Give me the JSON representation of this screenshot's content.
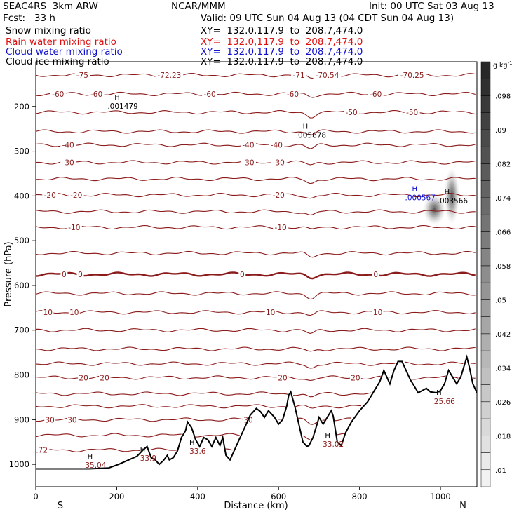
{
  "header": {
    "line1_left": "SEAC4RS  3km ARW",
    "line1_center": "NCAR/MMM",
    "line1_right": "Init: 00 UTC Sat 03 Aug 13",
    "line2_left": "Fcst:   33 h",
    "line2_right": "Valid: 09 UTC Sun 04 Aug 13 (04 CDT Sun 04 Aug 13)",
    "fields": [
      {
        "label": "Snow mixing ratio",
        "xy": "XY=  132.0,117.9  to  208.7,474.0",
        "color": "#000000"
      },
      {
        "label": "Rain water mixing ratio",
        "xy": "XY=  132.0,117.9  to  208.7,474.0",
        "color": "#e01010"
      },
      {
        "label": "Cloud water mixing ratio",
        "xy": "XY=  132.0,117.9  to  208.7,474.0",
        "color": "#1010d0"
      },
      {
        "label": "Cloud ice mixing ratio",
        "xy": "XY=  132.0,117.9  to  208.7,474.0",
        "color": "#000000"
      }
    ]
  },
  "colors": {
    "contour": "#8b1a1a",
    "terrain": "#000000",
    "plot_bg": "#ffffff"
  },
  "chart_data": {
    "type": "cross-section",
    "xlabel": "Distance (km)",
    "ylabel": "Pressure (hPa)",
    "xlim": [
      0,
      1090
    ],
    "ylim": [
      1050,
      100
    ],
    "x_ticks": [
      "0",
      "200",
      "400",
      "600",
      "800",
      "1000"
    ],
    "y_ticks": [
      "200",
      "300",
      "400",
      "500",
      "600",
      "700",
      "800",
      "900",
      "1000"
    ],
    "x_end_labels": {
      "left": "S",
      "right": "N"
    },
    "colorbar": {
      "unit": "g kg",
      "unit_exp": "-1",
      "labels": [
        ".098",
        ".09",
        ".082",
        ".074",
        ".066",
        ".058",
        ".05",
        ".042",
        ".034",
        ".026",
        ".018",
        ".01"
      ],
      "range": [
        0.006,
        0.106
      ],
      "levels": [
        0.006,
        0.01,
        0.014,
        0.018,
        0.022,
        0.026,
        0.03,
        0.034,
        0.038,
        0.042,
        0.046,
        0.05,
        0.054,
        0.058,
        0.062,
        0.066,
        0.07,
        0.074,
        0.078,
        0.082,
        0.086,
        0.09,
        0.094,
        0.098,
        0.102,
        0.106
      ]
    },
    "isotherms": [
      {
        "p": 130,
        "labels": [
          {
            "x": 115,
            "t": "-75"
          },
          {
            "x": 330,
            "t": "-72.23"
          },
          {
            "x": 650,
            "t": "-71"
          },
          {
            "x": 720,
            "t": "-70.54"
          },
          {
            "x": 930,
            "t": "-70.25"
          }
        ]
      },
      {
        "p": 172,
        "labels": [
          {
            "x": 55,
            "t": "-60"
          },
          {
            "x": 150,
            "t": "-60"
          },
          {
            "x": 430,
            "t": "-60"
          },
          {
            "x": 635,
            "t": "-60"
          },
          {
            "x": 840,
            "t": "-60"
          }
        ]
      },
      {
        "p": 213,
        "labels": [
          {
            "x": 780,
            "t": "-50"
          },
          {
            "x": 930,
            "t": "-50"
          }
        ]
      },
      {
        "p": 256
      },
      {
        "p": 286,
        "labels": [
          {
            "x": 80,
            "t": "-40"
          },
          {
            "x": 525,
            "t": "-40"
          },
          {
            "x": 595,
            "t": "-40"
          }
        ]
      },
      {
        "p": 325,
        "labels": [
          {
            "x": 80,
            "t": "-30"
          },
          {
            "x": 525,
            "t": "-30"
          },
          {
            "x": 600,
            "t": "-30"
          }
        ]
      },
      {
        "p": 362
      },
      {
        "p": 398,
        "labels": [
          {
            "x": 35,
            "t": "-20"
          },
          {
            "x": 100,
            "t": "-20"
          },
          {
            "x": 600,
            "t": "-20"
          }
        ]
      },
      {
        "p": 435
      },
      {
        "p": 470,
        "labels": [
          {
            "x": 95,
            "t": "-10"
          },
          {
            "x": 605,
            "t": "-10"
          }
        ]
      },
      {
        "p": 528
      },
      {
        "p": 575,
        "bold": true,
        "labels": [
          {
            "x": 70,
            "t": "0"
          },
          {
            "x": 110,
            "t": "0"
          },
          {
            "x": 510,
            "t": "0"
          },
          {
            "x": 840,
            "t": "0"
          }
        ]
      },
      {
        "p": 618
      },
      {
        "p": 660,
        "labels": [
          {
            "x": 30,
            "t": "10"
          },
          {
            "x": 95,
            "t": "10"
          },
          {
            "x": 580,
            "t": "10"
          },
          {
            "x": 845,
            "t": "10"
          }
        ]
      },
      {
        "p": 700
      },
      {
        "p": 742
      },
      {
        "p": 775
      },
      {
        "p": 806,
        "labels": [
          {
            "x": 118,
            "t": "20"
          },
          {
            "x": 170,
            "t": "20"
          },
          {
            "x": 610,
            "t": "20"
          },
          {
            "x": 790,
            "t": "20"
          }
        ]
      },
      {
        "p": 842
      },
      {
        "p": 870
      },
      {
        "p": 900,
        "labels": [
          {
            "x": 35,
            "t": "30"
          },
          {
            "x": 90,
            "t": "30"
          },
          {
            "x": 525,
            "t": "30"
          }
        ]
      },
      {
        "p": 935
      },
      {
        "p": 968,
        "labels": [
          {
            "x": 15,
            "t": ".72"
          }
        ]
      }
    ],
    "annotations": [
      {
        "x": 215,
        "p": 200,
        "t": ".001479"
      },
      {
        "x": 680,
        "p": 265,
        "t": ".005878"
      },
      {
        "x": 950,
        "p": 405,
        "t": ".000567",
        "blue": true
      },
      {
        "x": 1030,
        "p": 412,
        "t": ".003566"
      },
      {
        "x": 148,
        "p": 1003,
        "t": "35.04"
      },
      {
        "x": 278,
        "p": 987,
        "t": "33.9"
      },
      {
        "x": 400,
        "p": 972,
        "t": "33.6"
      },
      {
        "x": 735,
        "p": 956,
        "t": "33.02"
      },
      {
        "x": 1010,
        "p": 860,
        "t": "25.66"
      }
    ],
    "terrain": [
      [
        0,
        1010
      ],
      [
        80,
        1010
      ],
      [
        130,
        1010
      ],
      [
        180,
        1008
      ],
      [
        205,
        1000
      ],
      [
        230,
        990
      ],
      [
        250,
        982
      ],
      [
        265,
        968
      ],
      [
        275,
        960
      ],
      [
        285,
        985
      ],
      [
        295,
        990
      ],
      [
        305,
        1000
      ],
      [
        315,
        992
      ],
      [
        325,
        980
      ],
      [
        330,
        990
      ],
      [
        340,
        985
      ],
      [
        350,
        970
      ],
      [
        360,
        940
      ],
      [
        370,
        925
      ],
      [
        375,
        905
      ],
      [
        385,
        918
      ],
      [
        395,
        945
      ],
      [
        405,
        960
      ],
      [
        415,
        940
      ],
      [
        425,
        945
      ],
      [
        435,
        960
      ],
      [
        445,
        940
      ],
      [
        455,
        958
      ],
      [
        462,
        940
      ],
      [
        470,
        980
      ],
      [
        480,
        990
      ],
      [
        495,
        960
      ],
      [
        510,
        930
      ],
      [
        520,
        910
      ],
      [
        530,
        890
      ],
      [
        545,
        875
      ],
      [
        555,
        882
      ],
      [
        565,
        895
      ],
      [
        575,
        880
      ],
      [
        590,
        895
      ],
      [
        600,
        910
      ],
      [
        610,
        900
      ],
      [
        620,
        870
      ],
      [
        625,
        845
      ],
      [
        630,
        838
      ],
      [
        640,
        870
      ],
      [
        650,
        910
      ],
      [
        660,
        950
      ],
      [
        670,
        960
      ],
      [
        675,
        958
      ],
      [
        685,
        940
      ],
      [
        695,
        910
      ],
      [
        700,
        895
      ],
      [
        710,
        910
      ],
      [
        720,
        895
      ],
      [
        730,
        880
      ],
      [
        735,
        892
      ],
      [
        745,
        950
      ],
      [
        755,
        958
      ],
      [
        765,
        930
      ],
      [
        780,
        905
      ],
      [
        800,
        880
      ],
      [
        820,
        860
      ],
      [
        840,
        830
      ],
      [
        850,
        815
      ],
      [
        860,
        790
      ],
      [
        875,
        820
      ],
      [
        885,
        790
      ],
      [
        895,
        770
      ],
      [
        905,
        770
      ],
      [
        915,
        790
      ],
      [
        925,
        810
      ],
      [
        935,
        825
      ],
      [
        945,
        840
      ],
      [
        955,
        835
      ],
      [
        965,
        830
      ],
      [
        975,
        838
      ],
      [
        990,
        840
      ],
      [
        1000,
        835
      ],
      [
        1010,
        820
      ],
      [
        1020,
        790
      ],
      [
        1030,
        805
      ],
      [
        1040,
        820
      ],
      [
        1050,
        805
      ],
      [
        1060,
        775
      ],
      [
        1065,
        760
      ],
      [
        1072,
        785
      ],
      [
        1080,
        820
      ],
      [
        1090,
        840
      ]
    ],
    "ice_blobs": [
      {
        "x": 1028,
        "p": 400,
        "rx": 11,
        "ry": 40
      },
      {
        "x": 985,
        "p": 430,
        "rx": 16,
        "ry": 22
      }
    ]
  }
}
